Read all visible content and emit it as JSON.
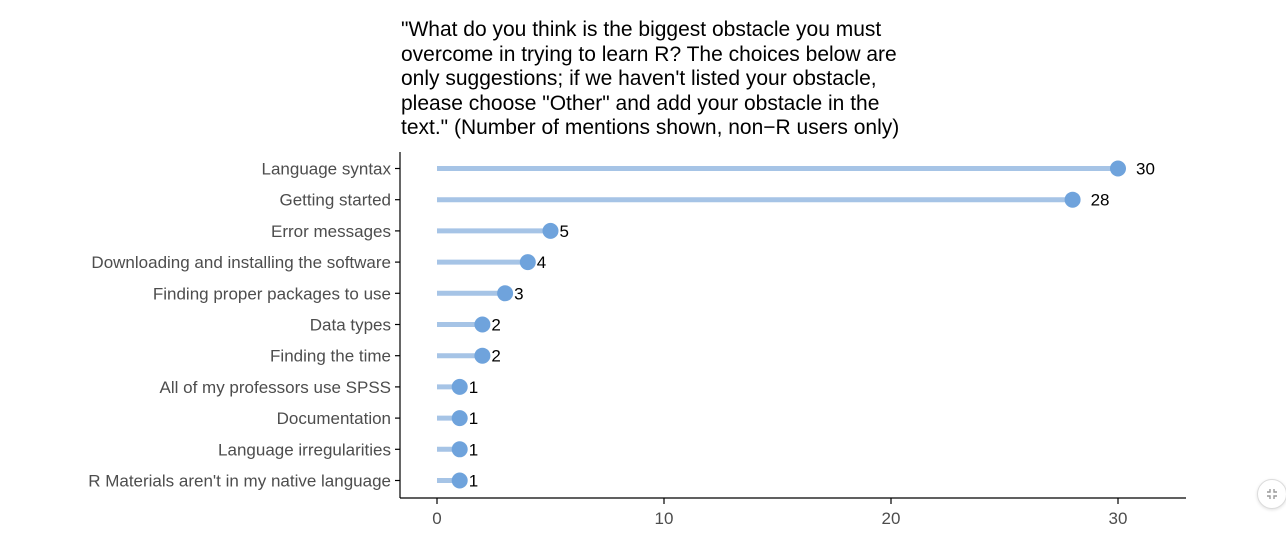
{
  "chart_data": {
    "type": "bar",
    "orientation": "horizontal",
    "style": "lollipop",
    "title": "\"What do you think is the biggest obstacle you must\novercome in trying to learn R? The choices below are\nonly suggestions; if we haven't listed your obstacle,\nplease choose \"Other\" and add your obstacle in the\ntext.\" (Number of mentions shown, non−R users only)",
    "xlabel": "",
    "ylabel": "",
    "categories": [
      "Language syntax",
      "Getting started",
      "Error messages",
      "Downloading and installing the software",
      "Finding proper packages to use",
      "Data types",
      "Finding the time",
      "All of my professors use SPSS",
      "Documentation",
      "Language irregularities",
      "R Materials aren't in my native language"
    ],
    "values": [
      30,
      28,
      5,
      4,
      3,
      2,
      2,
      1,
      1,
      1,
      1
    ],
    "xlim": [
      0,
      33
    ],
    "xticks": [
      0,
      10,
      20,
      30
    ],
    "grid": false,
    "legend": "none",
    "colors": {
      "bar": "#a6c4e6",
      "point": "#6fa3dc",
      "text": "#000000",
      "axis_label": "#4d4d4d"
    }
  },
  "ui": {
    "expand_icon": "collapse-arrows-icon"
  }
}
